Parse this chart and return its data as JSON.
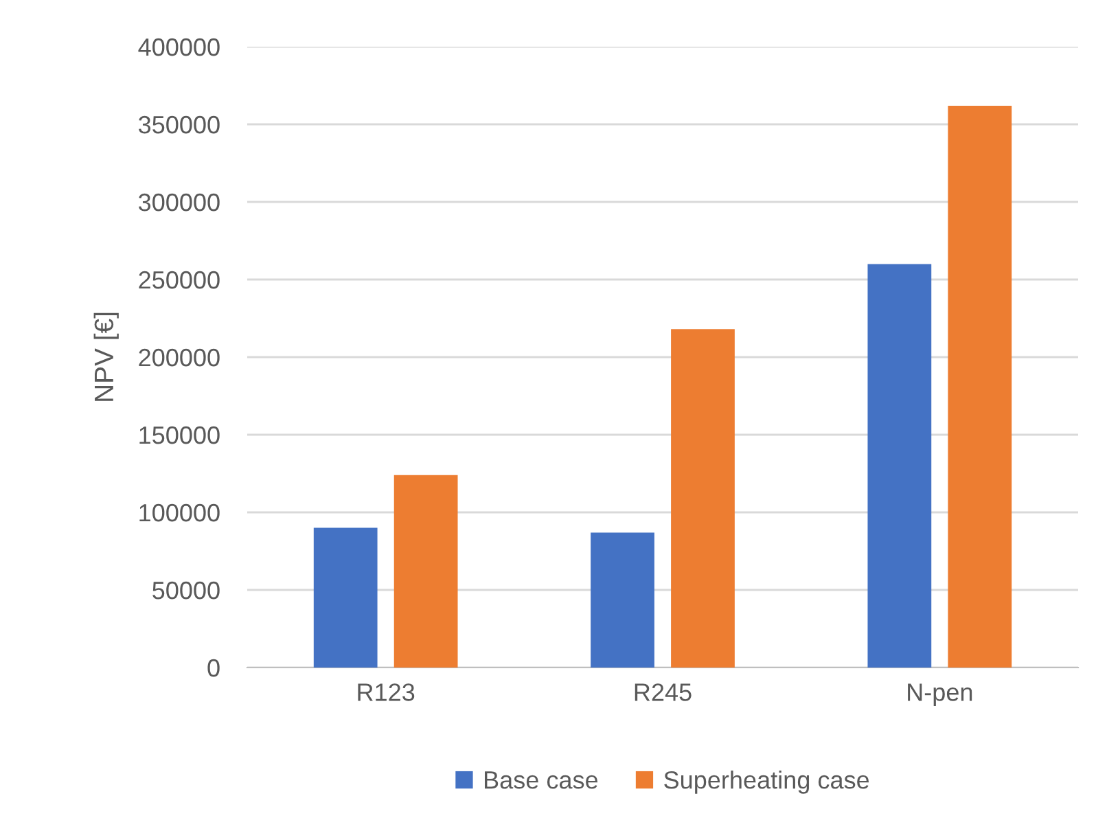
{
  "chart_data": {
    "type": "bar",
    "ylabel": "NPV [€]",
    "categories": [
      "R123",
      "R245",
      "N-pen"
    ],
    "series": [
      {
        "name": "Base case",
        "color": "#4472c4",
        "values": [
          90000,
          87000,
          260000
        ]
      },
      {
        "name": "Superheating case",
        "color": "#ed7d31",
        "values": [
          124000,
          218000,
          362000
        ]
      }
    ],
    "ylim": [
      0,
      400000
    ],
    "yticks": [
      0,
      50000,
      100000,
      150000,
      200000,
      250000,
      300000,
      350000,
      400000
    ],
    "grid": "y",
    "legend": "bottom"
  }
}
